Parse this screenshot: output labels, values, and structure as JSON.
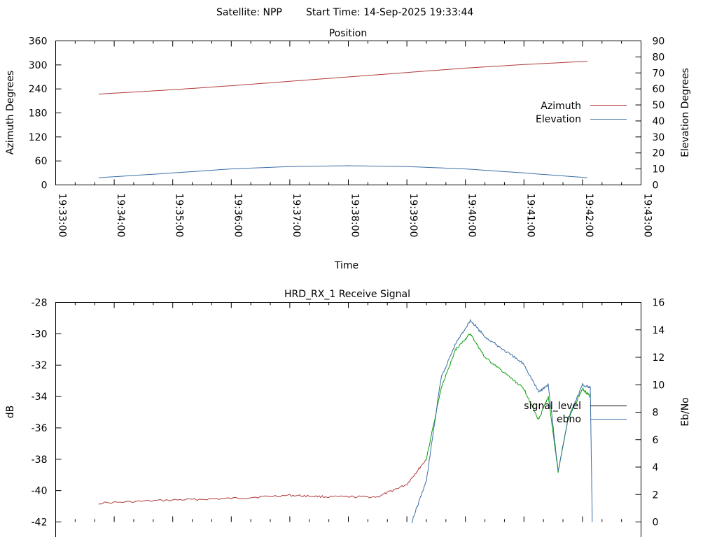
{
  "header": {
    "satellite_label": "Satellite: NPP",
    "start_time_label": "Start Time: 14-Sep-2025 19:33:44"
  },
  "colors": {
    "azimuth": "#b03a3a",
    "elevation": "#3a6ea5",
    "signal_level": "#000000",
    "ebno": "#3a6ea5",
    "signal_green": "#0aa00a",
    "signal_red": "#b03a3a"
  },
  "chart_data": [
    {
      "type": "line",
      "title": "Position",
      "xlabel": "Time",
      "ylabel": "Azimuth Degrees",
      "y2label": "Elevation Degrees",
      "ylim": [
        0,
        360
      ],
      "y2lim": [
        0,
        90
      ],
      "yticks": [
        "0",
        "60",
        "120",
        "180",
        "240",
        "300",
        "360"
      ],
      "y2ticks": [
        "0",
        "10",
        "20",
        "30",
        "40",
        "50",
        "60",
        "70",
        "80",
        "90"
      ],
      "xticks": [
        "19:33:00",
        "19:34:00",
        "19:35:00",
        "19:36:00",
        "19:37:00",
        "19:38:00",
        "19:39:00",
        "19:40:00",
        "19:41:00",
        "19:42:00",
        "19:43:00"
      ],
      "legend_position": "right",
      "series": [
        {
          "name": "Azimuth",
          "axis": "y",
          "x": [
            "19:33:44",
            "19:35:00",
            "19:36:00",
            "19:37:00",
            "19:38:00",
            "19:39:00",
            "19:40:00",
            "19:41:00",
            "19:42:05"
          ],
          "values": [
            227,
            238,
            248,
            259,
            270,
            281,
            292,
            301,
            309
          ]
        },
        {
          "name": "Elevation",
          "axis": "y2",
          "x": [
            "19:33:44",
            "19:35:00",
            "19:36:00",
            "19:37:00",
            "19:38:00",
            "19:39:00",
            "19:40:00",
            "19:41:00",
            "19:42:05"
          ],
          "values": [
            4.5,
            7.5,
            10.0,
            11.5,
            12.0,
            11.5,
            10.0,
            7.5,
            4.5
          ]
        }
      ]
    },
    {
      "type": "line",
      "title": "HRD_RX_1 Receive Signal",
      "ylabel": "dB",
      "y2label": "Eb/No",
      "ylim": [
        -42,
        -28
      ],
      "y2lim": [
        0,
        16
      ],
      "yticks": [
        "-42",
        "-40",
        "-38",
        "-36",
        "-34",
        "-32",
        "-30",
        "-28"
      ],
      "y2ticks": [
        "0",
        "2",
        "4",
        "6",
        "8",
        "10",
        "12",
        "14",
        "16"
      ],
      "legend_position": "right",
      "series": [
        {
          "name": "signal_level",
          "axis": "y",
          "x": [
            "19:33:44",
            "19:35:00",
            "19:36:00",
            "19:37:00",
            "19:37:40",
            "19:38:30",
            "19:39:00",
            "19:39:20",
            "19:39:35",
            "19:39:50",
            "19:40:05",
            "19:40:20",
            "19:40:40",
            "19:41:00",
            "19:41:15",
            "19:41:25",
            "19:41:35",
            "19:41:45",
            "19:42:00",
            "19:42:08"
          ],
          "values": [
            -40.8,
            -40.6,
            -40.5,
            -40.3,
            -40.4,
            -40.4,
            -39.6,
            -38.0,
            -33.5,
            -31.0,
            -30.0,
            -31.5,
            -32.5,
            -33.5,
            -35.5,
            -34.0,
            -38.8,
            -35.5,
            -33.5,
            -34.0
          ]
        },
        {
          "name": "ebno",
          "axis": "y2",
          "x": [
            "19:39:05",
            "19:39:20",
            "19:39:35",
            "19:39:50",
            "19:40:05",
            "19:40:20",
            "19:40:40",
            "19:41:00",
            "19:41:15",
            "19:41:25",
            "19:41:35",
            "19:41:45",
            "19:42:00",
            "19:42:08",
            "19:42:10"
          ],
          "values": [
            0.0,
            3.0,
            10.5,
            13.0,
            14.7,
            13.5,
            12.5,
            11.5,
            9.5,
            10.0,
            3.7,
            7.5,
            10.0,
            9.8,
            0.0
          ]
        }
      ]
    }
  ]
}
